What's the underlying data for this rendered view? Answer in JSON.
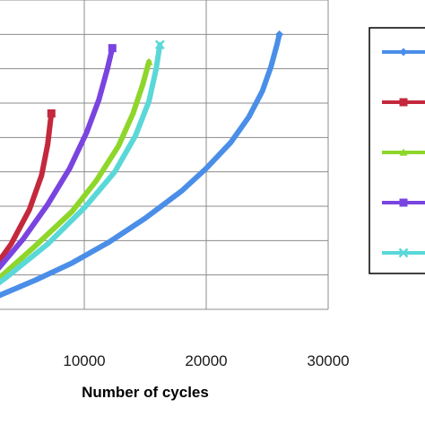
{
  "chart_data": {
    "type": "line",
    "xlabel": "Number of cycles",
    "ylabel": "",
    "xlim": [
      0,
      30000
    ],
    "ylim": [
      0,
      9
    ],
    "x_ticks": [
      10000,
      20000,
      30000
    ],
    "x_tick_labels": [
      "10000",
      "20000",
      "30000"
    ],
    "grid": true,
    "legend_position": "right",
    "series": [
      {
        "color": "#4a8ee8",
        "marker": "diamond",
        "x": [
          0,
          3000,
          6000,
          9000,
          12000,
          15000,
          18000,
          20000,
          22000,
          23500,
          24600,
          25300,
          25800,
          26000
        ],
        "y": [
          0,
          0.4,
          0.85,
          1.35,
          1.95,
          2.65,
          3.45,
          4.1,
          4.85,
          5.6,
          6.35,
          7.05,
          7.7,
          8.0
        ]
      },
      {
        "color": "#c4283c",
        "marker": "square",
        "x": [
          0,
          2000,
          4000,
          5500,
          6500,
          7000,
          7200,
          7300
        ],
        "y": [
          0,
          0.9,
          1.9,
          2.9,
          3.9,
          4.8,
          5.4,
          5.7
        ]
      },
      {
        "color": "#8ed62a",
        "marker": "triangle",
        "x": [
          0,
          3000,
          6000,
          9000,
          11000,
          12800,
          14000,
          14800,
          15300
        ],
        "y": [
          0,
          0.9,
          1.85,
          2.85,
          3.75,
          4.75,
          5.7,
          6.55,
          7.2
        ]
      },
      {
        "color": "#7a44e0",
        "marker": "square",
        "x": [
          0,
          2500,
          5000,
          7000,
          8800,
          10200,
          11200,
          11900,
          12300
        ],
        "y": [
          0,
          1.0,
          2.05,
          3.05,
          4.1,
          5.15,
          6.1,
          7.0,
          7.6
        ]
      },
      {
        "color": "#5ad8d8",
        "marker": "x",
        "x": [
          0,
          3500,
          7000,
          10000,
          12500,
          14200,
          15300,
          15900,
          16200
        ],
        "y": [
          0,
          0.9,
          1.9,
          2.95,
          4.0,
          5.05,
          6.05,
          7.0,
          7.7
        ]
      }
    ]
  }
}
